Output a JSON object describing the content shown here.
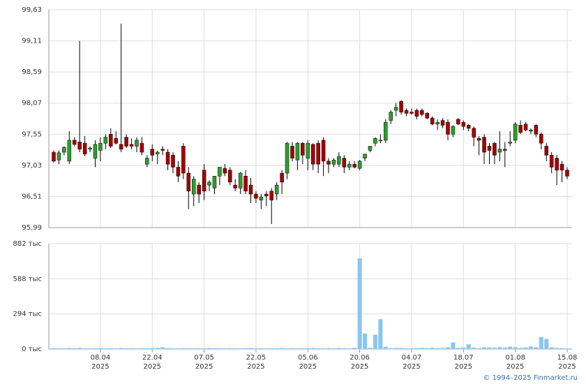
{
  "chart_data": {
    "type": "candlestick",
    "categories": [
      null,
      null,
      null,
      null,
      null,
      null,
      null,
      null,
      null,
      "08.04\n2025",
      null,
      null,
      null,
      null,
      null,
      null,
      null,
      null,
      null,
      "22.04\n2025",
      null,
      null,
      null,
      null,
      null,
      null,
      null,
      null,
      null,
      "07.05\n2025",
      null,
      null,
      null,
      null,
      null,
      null,
      null,
      null,
      null,
      "22.05\n2025",
      null,
      null,
      null,
      null,
      null,
      null,
      null,
      null,
      null,
      "05.06\n2025",
      null,
      null,
      null,
      null,
      null,
      null,
      null,
      null,
      null,
      "20.06\n2025",
      null,
      null,
      null,
      null,
      null,
      null,
      null,
      null,
      null,
      "04.07\n2025",
      null,
      null,
      null,
      null,
      null,
      null,
      null,
      null,
      null,
      "18.07\n2025",
      null,
      null,
      null,
      null,
      null,
      null,
      null,
      null,
      null,
      "01.08\n2025",
      null,
      null,
      null,
      null,
      null,
      null,
      null,
      null,
      null,
      "15.08\n2025"
    ],
    "open": [
      97.25,
      97.12,
      97.25,
      97.1,
      97.45,
      97.42,
      97.4,
      97.3,
      97.15,
      97.28,
      97.4,
      97.55,
      97.48,
      97.38,
      97.5,
      97.38,
      97.35,
      97.4,
      97.05,
      97.3,
      97.22,
      97.3,
      97.25,
      97.2,
      97.0,
      97.35,
      96.9,
      96.55,
      96.7,
      96.95,
      96.7,
      96.65,
      96.85,
      96.98,
      96.95,
      96.7,
      96.65,
      96.85,
      96.7,
      96.55,
      96.45,
      96.55,
      96.6,
      96.55,
      96.9,
      96.9,
      97.35,
      97.12,
      97.4,
      97.15,
      97.38,
      97.4,
      97.45,
      97.1,
      97.05,
      97.05,
      97.15,
      97.0,
      97.05,
      96.98,
      97.15,
      97.28,
      97.4,
      97.45,
      97.45,
      97.78,
      97.95,
      98.1,
      97.95,
      97.92,
      97.95,
      97.95,
      97.9,
      97.82,
      97.72,
      97.78,
      97.75,
      97.55,
      97.8,
      97.75,
      97.7,
      97.65,
      97.48,
      97.5,
      97.35,
      97.4,
      97.25,
      97.3,
      97.4,
      97.45,
      97.7,
      97.72,
      97.6,
      97.7,
      97.55,
      97.35,
      97.2,
      97.15,
      97.05,
      96.95
    ],
    "high": [
      97.28,
      97.28,
      97.35,
      97.6,
      97.5,
      99.11,
      97.52,
      97.35,
      97.45,
      97.5,
      97.55,
      97.65,
      97.6,
      99.4,
      97.55,
      97.48,
      97.5,
      97.5,
      97.2,
      97.38,
      97.28,
      97.35,
      97.3,
      97.25,
      97.1,
      97.4,
      97.0,
      96.85,
      96.75,
      97.05,
      96.78,
      96.85,
      97.0,
      97.05,
      97.0,
      96.8,
      96.92,
      96.95,
      96.82,
      96.6,
      96.55,
      96.6,
      96.65,
      96.75,
      96.95,
      97.42,
      97.42,
      97.42,
      97.42,
      97.45,
      97.4,
      97.45,
      97.5,
      97.15,
      97.15,
      97.25,
      97.2,
      97.1,
      97.1,
      97.12,
      97.22,
      97.35,
      97.5,
      97.55,
      97.8,
      97.95,
      98.07,
      98.12,
      97.98,
      97.98,
      97.98,
      97.98,
      97.92,
      97.85,
      97.8,
      97.82,
      97.8,
      97.7,
      97.82,
      97.78,
      97.72,
      97.68,
      97.52,
      97.55,
      97.4,
      97.42,
      97.6,
      97.42,
      97.6,
      97.75,
      97.78,
      97.75,
      97.65,
      97.72,
      97.58,
      97.4,
      97.25,
      97.2,
      97.1,
      97.0
    ],
    "low": [
      97.08,
      97.05,
      97.2,
      97.05,
      97.35,
      97.25,
      97.18,
      97.25,
      97.0,
      97.1,
      97.3,
      97.32,
      97.38,
      97.25,
      97.32,
      97.3,
      97.25,
      97.2,
      97.0,
      97.1,
      97.05,
      97.2,
      96.95,
      96.9,
      96.75,
      96.8,
      96.3,
      96.35,
      96.4,
      96.45,
      96.6,
      96.55,
      96.7,
      96.85,
      96.7,
      96.6,
      96.55,
      96.55,
      96.4,
      96.4,
      96.3,
      96.35,
      96.05,
      96.45,
      96.55,
      96.8,
      97.1,
      96.95,
      97.05,
      96.95,
      96.95,
      96.9,
      96.85,
      96.9,
      97.0,
      97.0,
      96.9,
      96.95,
      96.98,
      96.95,
      97.1,
      97.25,
      97.35,
      97.4,
      97.4,
      97.72,
      97.85,
      97.88,
      97.85,
      97.88,
      97.8,
      97.85,
      97.8,
      97.7,
      97.62,
      97.65,
      97.45,
      97.5,
      97.7,
      97.62,
      97.6,
      97.35,
      97.2,
      97.05,
      97.05,
      97.05,
      97.1,
      97.0,
      97.35,
      97.4,
      97.55,
      97.6,
      97.55,
      97.5,
      97.3,
      97.1,
      96.9,
      96.7,
      96.75,
      96.8
    ],
    "close": [
      97.1,
      97.24,
      97.33,
      97.45,
      97.38,
      97.3,
      97.22,
      97.32,
      97.38,
      97.4,
      97.5,
      97.35,
      97.4,
      97.3,
      97.35,
      97.35,
      97.45,
      97.25,
      97.15,
      97.2,
      97.25,
      97.28,
      97.05,
      97.0,
      96.85,
      96.9,
      96.6,
      96.8,
      96.55,
      96.6,
      96.75,
      96.85,
      97.0,
      96.9,
      96.75,
      96.65,
      96.9,
      96.6,
      96.55,
      96.48,
      96.5,
      96.52,
      96.45,
      96.7,
      96.75,
      97.4,
      97.15,
      97.4,
      97.2,
      97.4,
      97.05,
      97.05,
      97.1,
      97.05,
      97.12,
      97.18,
      97.0,
      97.05,
      97.0,
      97.1,
      97.22,
      97.35,
      97.48,
      97.45,
      97.75,
      97.92,
      98.0,
      97.92,
      97.9,
      97.9,
      97.85,
      97.88,
      97.82,
      97.72,
      97.75,
      97.7,
      97.55,
      97.68,
      97.72,
      97.68,
      97.65,
      97.5,
      97.45,
      97.25,
      97.28,
      97.2,
      97.3,
      97.28,
      97.42,
      97.72,
      97.58,
      97.62,
      97.62,
      97.55,
      97.4,
      97.2,
      97.0,
      96.95,
      96.95,
      96.85
    ],
    "volume": [
      8000,
      6000,
      7000,
      9000,
      8000,
      10000,
      7000,
      6000,
      8000,
      9000,
      7000,
      8000,
      6000,
      9000,
      7000,
      8000,
      6000,
      7000,
      8000,
      9000,
      10000,
      15000,
      8000,
      7000,
      6000,
      8000,
      7000,
      6000,
      8000,
      7000,
      9000,
      8000,
      7000,
      6000,
      8000,
      7000,
      6000,
      8000,
      9000,
      7000,
      8000,
      6000,
      7000,
      8000,
      9000,
      7000,
      8000,
      6000,
      7000,
      8000,
      9000,
      7000,
      6000,
      8000,
      7000,
      9000,
      8000,
      6000,
      10000,
      760000,
      130000,
      10000,
      120000,
      250000,
      20000,
      8000,
      10000,
      9000,
      8000,
      7000,
      9000,
      10000,
      8000,
      12000,
      9000,
      10000,
      15000,
      55000,
      10000,
      12000,
      40000,
      12000,
      8000,
      15000,
      14000,
      12000,
      16000,
      12000,
      20000,
      15000,
      10000,
      14000,
      22000,
      15000,
      100000,
      85000,
      15000,
      10000,
      8000,
      6000
    ],
    "up_color": "#2e9e2e",
    "down_color": "#a50000",
    "volume_color": "#8cc4ee",
    "ylim": [
      95.99,
      99.63
    ],
    "yticks": [
      {
        "value": 95.99,
        "label": "95,99"
      },
      {
        "value": 96.51,
        "label": "96,51"
      },
      {
        "value": 97.03,
        "label": "97,03"
      },
      {
        "value": 97.55,
        "label": "97,55"
      },
      {
        "value": 98.07,
        "label": "98,07"
      },
      {
        "value": 98.59,
        "label": "98,59"
      },
      {
        "value": 99.11,
        "label": "99,11"
      },
      {
        "value": 99.63,
        "label": "99,63"
      }
    ],
    "y2lim": [
      0,
      882000
    ],
    "y2ticks": [
      {
        "value": 0,
        "label": "0 тыс"
      },
      {
        "value": 294000,
        "label": "294 тыс"
      },
      {
        "value": 588000,
        "label": "588 тыс"
      },
      {
        "value": 882000,
        "label": "882 тыс"
      }
    ],
    "grid": true,
    "copyright": "© 1994–2025 Finmarket.ru"
  }
}
